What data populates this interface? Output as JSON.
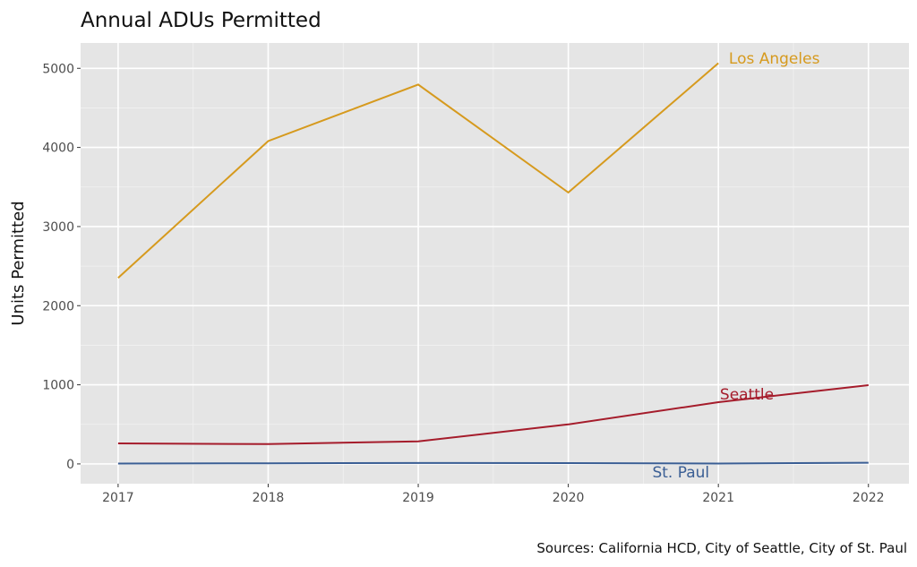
{
  "chart_data": {
    "type": "line",
    "title": "Annual ADUs Permitted",
    "xlabel": "",
    "ylabel": "Units Permitted",
    "caption": "Sources: California HCD, City of Seattle, City of St. Paul",
    "x": [
      2017,
      2018,
      2019,
      2020,
      2021,
      2022
    ],
    "x_ticks": [
      "2017",
      "2018",
      "2019",
      "2020",
      "2021",
      "2022"
    ],
    "y_ticks": [
      "0",
      "1000",
      "2000",
      "3000",
      "4000",
      "5000"
    ],
    "xlim": [
      2016.75,
      2022.27
    ],
    "ylim": [
      -250,
      5320
    ],
    "grid": true,
    "legend": "direct labels",
    "series": [
      {
        "name": "Los Angeles",
        "color": "#D69A1E",
        "values": [
          2350,
          4080,
          4795,
          3430,
          5065,
          null
        ]
      },
      {
        "name": "Seattle",
        "color": "#A51C2B",
        "values": [
          260,
          250,
          285,
          500,
          780,
          995
        ]
      },
      {
        "name": "St. Paul",
        "color": "#3A5E94",
        "values": [
          5,
          8,
          12,
          10,
          5,
          15
        ]
      }
    ]
  }
}
